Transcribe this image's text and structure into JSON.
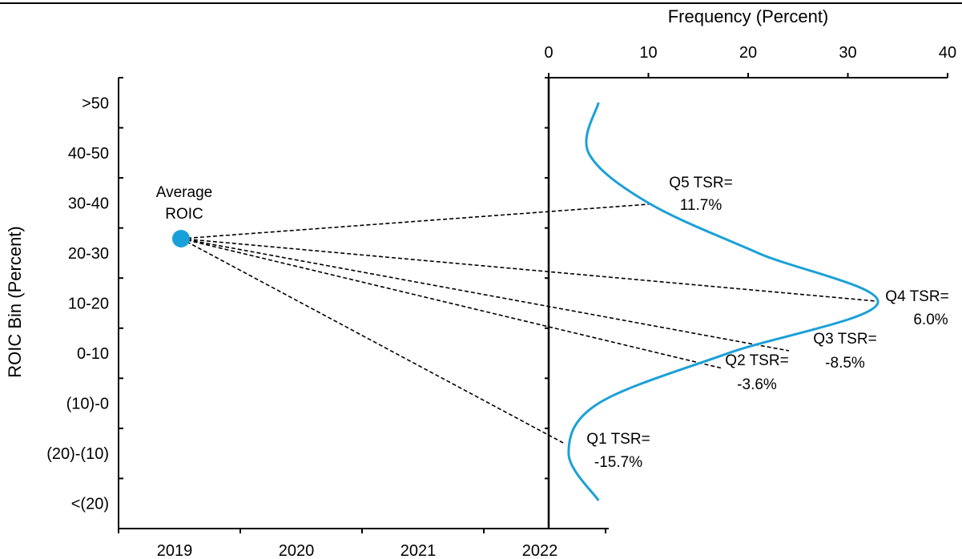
{
  "chart_data": {
    "type": "line",
    "y_axis": {
      "label": "ROIC Bin (Percent)",
      "categories": [
        ">50",
        "40-50",
        "30-40",
        "20-30",
        "10-20",
        "0-10",
        "(10)-0",
        "(20)-(10)",
        "<(20)"
      ]
    },
    "x_axis_bottom": {
      "categories": [
        "2019",
        "2020",
        "2021",
        "2022"
      ]
    },
    "x_axis_top": {
      "label": "Frequency (Percent)",
      "ticks": [
        0,
        10,
        20,
        30,
        40
      ],
      "range": [
        0,
        40
      ]
    },
    "distribution_curve": {
      "color": "#1aa0d8",
      "points": [
        {
          "bin": ">50",
          "frequency": 5
        },
        {
          "bin": "40-50",
          "frequency": 4
        },
        {
          "bin": "30-40",
          "frequency": 10
        },
        {
          "bin": "20-30",
          "frequency": 21
        },
        {
          "bin": "10-20",
          "frequency": 33
        },
        {
          "bin": "0-10",
          "frequency": 18
        },
        {
          "bin": "(10)-0",
          "frequency": 5
        },
        {
          "bin": "(20)-(10)",
          "frequency": 2
        },
        {
          "bin": "<(20)",
          "frequency": 5
        }
      ]
    },
    "average_point": {
      "label_line1": "Average",
      "label_line2": "ROIC",
      "color": "#1aa0d8"
    },
    "quintiles": [
      {
        "label_line1": "Q5 TSR=",
        "label_line2": "11.7%"
      },
      {
        "label_line1": "Q4 TSR=",
        "label_line2": "6.0%"
      },
      {
        "label_line1": "Q3 TSR=",
        "label_line2": "-8.5%"
      },
      {
        "label_line1": "Q2 TSR=",
        "label_line2": "-3.6%"
      },
      {
        "label_line1": "Q1 TSR=",
        "label_line2": "-15.7%"
      }
    ]
  }
}
